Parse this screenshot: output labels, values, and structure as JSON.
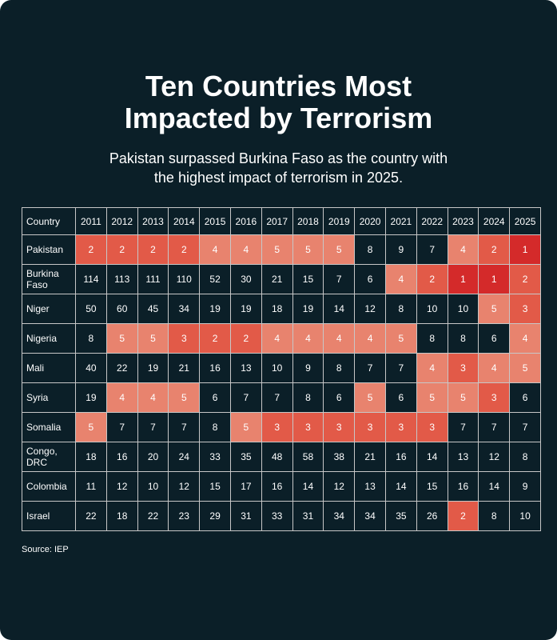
{
  "title_line1": "Ten Countries Most",
  "title_line2": "Impacted by Terrorism",
  "subtitle_line1": "Pakistan surpassed Burkina Faso as the country with",
  "subtitle_line2": "the highest impact of terrorism in 2025.",
  "source": "Source: IEP",
  "colors": {
    "background": "#0b1f28",
    "rank_1": "#d42a2a",
    "rank_2_3": "#e25a48",
    "rank_4_5": "#e8836e"
  },
  "chart_data": {
    "type": "table",
    "title": "Ten Countries Most Impacted by Terrorism",
    "subtitle": "Pakistan surpassed Burkina Faso as the country with the highest impact of terrorism in 2025.",
    "header_label": "Country",
    "years": [
      "2011",
      "2012",
      "2013",
      "2014",
      "2015",
      "2016",
      "2017",
      "2018",
      "2019",
      "2020",
      "2021",
      "2022",
      "2023",
      "2024",
      "2025"
    ],
    "rows": [
      {
        "country": [
          "Pakistan"
        ],
        "values": [
          2,
          2,
          2,
          2,
          4,
          4,
          5,
          5,
          5,
          8,
          9,
          7,
          4,
          2,
          1
        ]
      },
      {
        "country": [
          "Burkina",
          "Faso"
        ],
        "values": [
          114,
          113,
          111,
          110,
          52,
          30,
          21,
          15,
          7,
          6,
          4,
          2,
          1,
          1,
          2
        ]
      },
      {
        "country": [
          "Niger"
        ],
        "values": [
          50,
          60,
          45,
          34,
          19,
          19,
          18,
          19,
          14,
          12,
          8,
          10,
          10,
          5,
          3
        ]
      },
      {
        "country": [
          "Nigeria"
        ],
        "values": [
          8,
          5,
          5,
          3,
          2,
          2,
          4,
          4,
          4,
          4,
          5,
          8,
          8,
          6,
          4
        ]
      },
      {
        "country": [
          "Mali"
        ],
        "values": [
          40,
          22,
          19,
          21,
          16,
          13,
          10,
          9,
          8,
          7,
          7,
          4,
          3,
          4,
          5
        ]
      },
      {
        "country": [
          "Syria"
        ],
        "values": [
          19,
          4,
          4,
          5,
          6,
          7,
          7,
          8,
          6,
          5,
          6,
          5,
          5,
          3,
          6
        ]
      },
      {
        "country": [
          "Somalia"
        ],
        "values": [
          5,
          7,
          7,
          7,
          8,
          5,
          3,
          3,
          3,
          3,
          3,
          3,
          7,
          7,
          7
        ]
      },
      {
        "country": [
          "Congo,",
          "DRC"
        ],
        "values": [
          18,
          16,
          20,
          24,
          33,
          35,
          48,
          58,
          38,
          21,
          16,
          14,
          13,
          12,
          8
        ]
      },
      {
        "country": [
          "Colombia"
        ],
        "values": [
          11,
          12,
          10,
          12,
          15,
          17,
          16,
          14,
          12,
          13,
          14,
          15,
          16,
          14,
          9
        ]
      },
      {
        "country": [
          "Israel"
        ],
        "values": [
          22,
          18,
          22,
          23,
          29,
          31,
          33,
          31,
          34,
          34,
          35,
          26,
          2,
          8,
          10
        ]
      }
    ],
    "source": "Source: IEP"
  }
}
